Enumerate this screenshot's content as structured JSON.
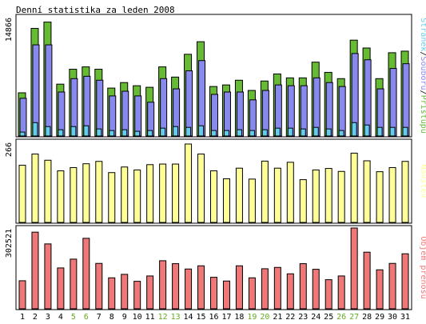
{
  "chart_data": {
    "type": "bar",
    "title": "Denní statistika za leden 2008",
    "categories": [
      "1",
      "2",
      "3",
      "4",
      "5",
      "6",
      "7",
      "8",
      "9",
      "10",
      "11",
      "12",
      "13",
      "14",
      "15",
      "16",
      "17",
      "18",
      "19",
      "20",
      "21",
      "22",
      "23",
      "24",
      "25",
      "26",
      "27",
      "28",
      "29",
      "30",
      "31"
    ],
    "weekend_days": [
      "5",
      "6",
      "12",
      "13",
      "19",
      "20",
      "26",
      "27"
    ],
    "colors": {
      "pristupu": "#66bb33",
      "souboru": "#8888ee",
      "stranek": "#66ccee",
      "navstev": "#ffff99",
      "objem": "#ee7777",
      "weekend_label": "#66aa22",
      "weekday_label": "#000000",
      "frame": "#000000",
      "background": "#ffffff"
    },
    "panels": [
      {
        "id": "top",
        "ymax_label": "14866",
        "ylim": [
          0,
          14866
        ],
        "legend": [
          "Stránek",
          "Souborů",
          "Přístupů"
        ],
        "legend_separator": "/",
        "legend_placement": "right-vertical",
        "series": [
          {
            "name": "Přístupů",
            "color_key": "pristupu",
            "values": [
              5500,
              13700,
              14500,
              6600,
              8500,
              8800,
              8500,
              6100,
              6800,
              6400,
              6200,
              8800,
              7500,
              10400,
              12000,
              6300,
              6500,
              7100,
              5800,
              7000,
              7900,
              7400,
              7400,
              9400,
              8100,
              7300,
              12200,
              11200,
              7300,
              10600,
              10800
            ]
          },
          {
            "name": "Souborů",
            "color_key": "souboru",
            "values": [
              4800,
              11600,
              11600,
              5600,
              7300,
              7600,
              7100,
              5100,
              5700,
              5100,
              4300,
              7300,
              6000,
              8300,
              9600,
              5300,
              5600,
              5600,
              4600,
              5800,
              6500,
              6400,
              6400,
              7400,
              6800,
              6300,
              10500,
              9700,
              6000,
              8600,
              9200
            ]
          },
          {
            "name": "Stránek",
            "color_key": "stranek",
            "values": [
              500,
              1700,
              1200,
              800,
              1200,
              1300,
              900,
              700,
              800,
              600,
              700,
              1000,
              1200,
              1100,
              1300,
              700,
              700,
              800,
              700,
              800,
              1000,
              1000,
              900,
              1100,
              900,
              700,
              1700,
              1400,
              1100,
              1100,
              1100
            ]
          }
        ]
      },
      {
        "id": "middle",
        "ymax_label": "266",
        "ylim": [
          0,
          266
        ],
        "legend": [
          "Návštěv"
        ],
        "legend_placement": "right-vertical",
        "series": [
          {
            "name": "Návštěv",
            "color_key": "navstev",
            "values": [
              194,
              232,
              211,
              175,
              186,
              199,
              207,
              169,
              188,
              178,
              196,
              198,
              198,
              266,
              232,
              175,
              148,
              184,
              147,
              208,
              184,
              204,
              145,
              178,
              183,
              173,
              235,
              209,
              172,
              186,
              207
            ]
          }
        ]
      },
      {
        "id": "bottom",
        "ymax_label": "302521",
        "ylim": [
          0,
          302521
        ],
        "legend": [
          "Objem přenosu"
        ],
        "legend_placement": "right-vertical",
        "series": [
          {
            "name": "Objem přenosu",
            "color_key": "objem",
            "values": [
              105000,
              287000,
              243000,
              153000,
              186000,
              264000,
              170000,
              116000,
              129000,
              103000,
              123000,
              180000,
              169000,
              149000,
              161000,
              118000,
              104000,
              161000,
              116000,
              150000,
              155000,
              131000,
              169000,
              148000,
              109000,
              123000,
              302521,
              212000,
              146000,
              170000,
              206000
            ]
          }
        ]
      }
    ]
  }
}
